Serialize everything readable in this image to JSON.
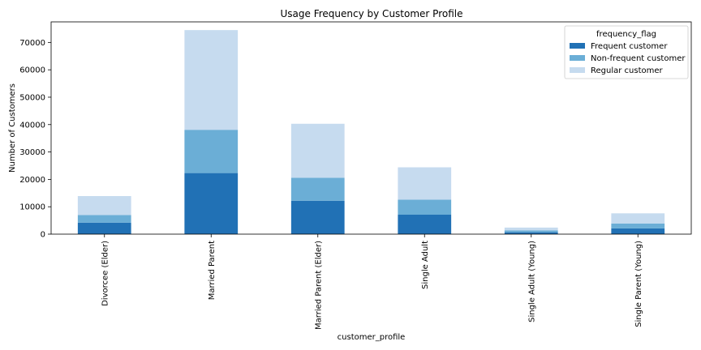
{
  "chart_data": {
    "type": "bar",
    "stacked": true,
    "title": "Usage Frequency by Customer Profile",
    "xlabel": "customer_profile",
    "ylabel": "Number of Customers",
    "ylim": [
      0,
      77500
    ],
    "yticks": [
      0,
      10000,
      20000,
      30000,
      40000,
      50000,
      60000,
      70000
    ],
    "grid": false,
    "legend": {
      "title": "frequency_flag",
      "placement": "top-right"
    },
    "categories": [
      "Divorcee (Elder)",
      "Married Parent",
      "Married Parent (Elder)",
      "Single Adult",
      "Single Adult (Young)",
      "Single Parent (Young)"
    ],
    "series": [
      {
        "name": "Frequent customer",
        "color": "#2171b5",
        "values": [
          4200,
          22300,
          12200,
          7100,
          700,
          2100
        ]
      },
      {
        "name": "Non-frequent customer",
        "color": "#6baed6",
        "values": [
          2800,
          15800,
          8400,
          5500,
          700,
          1800
        ]
      },
      {
        "name": "Regular customer",
        "color": "#c6dbef",
        "values": [
          6900,
          36400,
          19700,
          11800,
          1000,
          3700
        ]
      }
    ]
  }
}
